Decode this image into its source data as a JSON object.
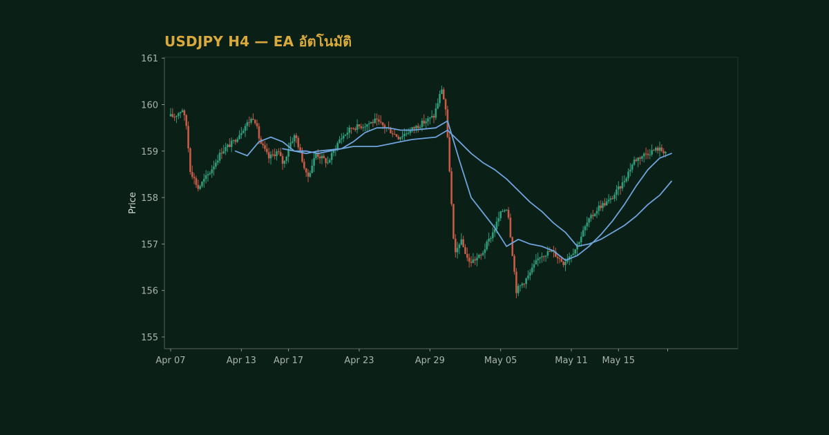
{
  "chart_data": {
    "type": "candlestick",
    "title": "USDJPY H4 — EA อัตโนมัติ",
    "xlabel": "",
    "ylabel": "Price",
    "ylim": [
      154.8,
      161.0
    ],
    "xlim": [
      "2025-04-07",
      "2025-05-19"
    ],
    "x_ticks": [
      "Apr 07",
      "Apr 13",
      "Apr 17",
      "Apr 23",
      "Apr 29",
      "May 05",
      "May 11",
      "May 15"
    ],
    "y_ticks": [
      155,
      156,
      157,
      158,
      159,
      160,
      161
    ],
    "grid": false,
    "legend": "none",
    "colors": {
      "up": "#2e9e7c",
      "down": "#c75b48",
      "ma_fast": "#6fa4dd",
      "ma_slow": "#6fa4dd",
      "background": "#0a1f16",
      "axes": "#1e3a30",
      "title": "#d9a93e"
    },
    "anchors": [
      [
        "Apr 07",
        159.75
      ],
      [
        "Apr 08",
        159.9
      ],
      [
        "Apr 08",
        159.55
      ],
      [
        "Apr 08",
        158.6
      ],
      [
        "Apr 09",
        158.2
      ],
      [
        "Apr 10",
        158.55
      ],
      [
        "Apr 11",
        159.0
      ],
      [
        "Apr 12",
        159.2
      ],
      [
        "Apr 13",
        159.55
      ],
      [
        "Apr 14",
        159.75
      ],
      [
        "Apr 14",
        159.2
      ],
      [
        "Apr 15",
        158.85
      ],
      [
        "Apr 16",
        159.0
      ],
      [
        "Apr 16",
        158.7
      ],
      [
        "Apr 17",
        159.15
      ],
      [
        "Apr 17",
        159.35
      ],
      [
        "Apr 18",
        158.9
      ],
      [
        "Apr 18",
        158.4
      ],
      [
        "Apr 19",
        158.95
      ],
      [
        "Apr 20",
        158.75
      ],
      [
        "Apr 21",
        159.25
      ],
      [
        "Apr 22",
        159.5
      ],
      [
        "Apr 23",
        159.55
      ],
      [
        "Apr 24",
        159.65
      ],
      [
        "Apr 25",
        159.5
      ],
      [
        "Apr 26",
        159.3
      ],
      [
        "Apr 27",
        159.45
      ],
      [
        "Apr 28",
        159.6
      ],
      [
        "Apr 29",
        159.75
      ],
      [
        "Apr 30",
        160.35
      ],
      [
        "Apr 30",
        159.9
      ],
      [
        "Apr 30",
        158.6
      ],
      [
        "May 01",
        156.7
      ],
      [
        "May 01",
        157.1
      ],
      [
        "May 02",
        156.6
      ],
      [
        "May 03",
        156.75
      ],
      [
        "May 04",
        157.25
      ],
      [
        "May 05",
        157.7
      ],
      [
        "May 05",
        157.8
      ],
      [
        "May 06",
        156.0
      ],
      [
        "May 07",
        156.3
      ],
      [
        "May 08",
        156.75
      ],
      [
        "May 09",
        156.85
      ],
      [
        "May 10",
        156.6
      ],
      [
        "May 11",
        156.9
      ],
      [
        "May 12",
        157.45
      ],
      [
        "May 13",
        157.8
      ],
      [
        "May 14",
        157.95
      ],
      [
        "May 15",
        158.3
      ],
      [
        "May 16",
        158.8
      ],
      [
        "May 17",
        158.95
      ],
      [
        "May 18",
        159.05
      ],
      [
        "May 19",
        158.95
      ]
    ],
    "series": [
      {
        "values": [
          [
            "Apr 12",
            159.0
          ],
          [
            "Apr 13",
            158.9
          ],
          [
            "Apr 14",
            159.2
          ],
          [
            "Apr 15",
            159.3
          ],
          [
            "Apr 16",
            159.2
          ],
          [
            "Apr 17",
            159.0
          ],
          [
            "Apr 18",
            159.0
          ],
          [
            "Apr 19",
            158.95
          ],
          [
            "Apr 20",
            159.0
          ],
          [
            "Apr 21",
            159.05
          ],
          [
            "Apr 22",
            159.2
          ],
          [
            "Apr 23",
            159.4
          ],
          [
            "Apr 24",
            159.5
          ],
          [
            "Apr 25",
            159.5
          ],
          [
            "Apr 26",
            159.45
          ],
          [
            "Apr 27",
            159.45
          ],
          [
            "Apr 29",
            159.5
          ],
          [
            "Apr 30",
            159.65
          ],
          [
            "May 01",
            158.8
          ],
          [
            "May 02",
            158.0
          ],
          [
            "May 04",
            157.35
          ],
          [
            "May 05",
            156.95
          ],
          [
            "May 06",
            157.1
          ],
          [
            "May 07",
            157.0
          ],
          [
            "May 08",
            156.95
          ],
          [
            "May 09",
            156.85
          ],
          [
            "May 10",
            156.65
          ],
          [
            "May 11",
            156.75
          ],
          [
            "May 12",
            156.95
          ],
          [
            "May 13",
            157.2
          ],
          [
            "May 14",
            157.5
          ],
          [
            "May 15",
            157.85
          ],
          [
            "May 16",
            158.25
          ],
          [
            "May 17",
            158.6
          ],
          [
            "May 18",
            158.85
          ],
          [
            "May 19",
            158.95
          ]
        ]
      },
      {
        "values": [
          [
            "Apr 16",
            159.05
          ],
          [
            "Apr 17",
            159.0
          ],
          [
            "Apr 18",
            158.95
          ],
          [
            "Apr 19",
            159.0
          ],
          [
            "Apr 21",
            159.05
          ],
          [
            "Apr 22",
            159.1
          ],
          [
            "Apr 23",
            159.1
          ],
          [
            "Apr 24",
            159.1
          ],
          [
            "Apr 25",
            159.15
          ],
          [
            "Apr 26",
            159.2
          ],
          [
            "Apr 27",
            159.25
          ],
          [
            "Apr 29",
            159.3
          ],
          [
            "Apr 30",
            159.45
          ],
          [
            "May 01",
            159.2
          ],
          [
            "May 02",
            158.95
          ],
          [
            "May 03",
            158.75
          ],
          [
            "May 04",
            158.6
          ],
          [
            "May 05",
            158.4
          ],
          [
            "May 06",
            158.15
          ],
          [
            "May 07",
            157.9
          ],
          [
            "May 08",
            157.7
          ],
          [
            "May 09",
            157.45
          ],
          [
            "May 10",
            157.25
          ],
          [
            "May 11",
            156.95
          ],
          [
            "May 12",
            157.0
          ],
          [
            "May 13",
            157.1
          ],
          [
            "May 14",
            157.25
          ],
          [
            "May 15",
            157.4
          ],
          [
            "May 16",
            157.6
          ],
          [
            "May 17",
            157.85
          ],
          [
            "May 18",
            158.05
          ],
          [
            "May 19",
            158.35
          ]
        ]
      }
    ]
  }
}
